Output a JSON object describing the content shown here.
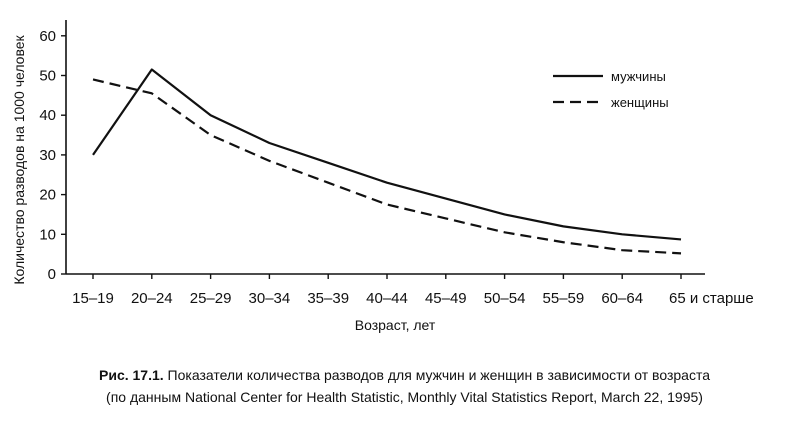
{
  "chart_data": {
    "type": "line",
    "categories": [
      "15–19",
      "20–24",
      "25–29",
      "30–34",
      "35–39",
      "40–44",
      "45–49",
      "50–54",
      "55–59",
      "60–64",
      "65 и старше"
    ],
    "series": [
      {
        "name": "мужчины",
        "style": "solid",
        "color": "#111111",
        "values": [
          30,
          51.5,
          40,
          33,
          28,
          23,
          19,
          15,
          12,
          10,
          8.7
        ]
      },
      {
        "name": "женщины",
        "style": "dashed",
        "color": "#111111",
        "values": [
          49,
          45.5,
          35,
          28.5,
          23,
          17.5,
          14,
          10.5,
          8,
          6,
          5.2
        ]
      }
    ],
    "ylabel": "Количество разводов на 1000 человек",
    "xlabel": "Возраст, лет",
    "ylim": [
      0,
      65
    ],
    "yticks": [
      0,
      10,
      20,
      30,
      40,
      50,
      60
    ],
    "grid": false,
    "legend_position": "top-right"
  },
  "caption": {
    "label": "Рис. 17.1.",
    "line1": "Показатели количества разводов для мужчин и женщин в зависимости от возраста",
    "line2": "(по данным National Center for Health Statistic, Monthly Vital Statistics Report, March 22, 1995)"
  }
}
